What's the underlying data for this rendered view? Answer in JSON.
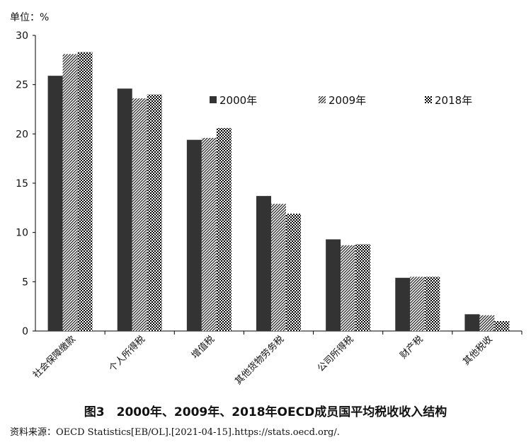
{
  "unit_label": "单位：%",
  "caption": "图3　2000年、2009年、2018年OECD成员国平均税收收入结构",
  "source": "资料来源：OECD Statistics[EB/OL].[2021-04-15].https://stats.oecd.org/.",
  "chart_data": {
    "type": "bar",
    "title": "",
    "xlabel": "",
    "ylabel": "",
    "ylim": [
      0,
      30
    ],
    "yticks": [
      0,
      5,
      10,
      15,
      20,
      25,
      30
    ],
    "legend_position": "top-right",
    "categories": [
      "社会保障缴款",
      "个人所得税",
      "增值税",
      "其他货物劳务税",
      "公司所得税",
      "财产税",
      "其他税收"
    ],
    "series": [
      {
        "name": "2000年",
        "style": "solid",
        "color": "#333333",
        "values": [
          25.9,
          24.6,
          19.4,
          13.7,
          9.3,
          5.4,
          1.7
        ]
      },
      {
        "name": "2009年",
        "style": "diagonal",
        "color": "#333333",
        "values": [
          28.1,
          23.6,
          19.6,
          12.9,
          8.7,
          5.5,
          1.6
        ]
      },
      {
        "name": "2018年",
        "style": "dots",
        "color": "#000000",
        "values": [
          28.3,
          24.0,
          20.6,
          11.9,
          8.8,
          5.5,
          1.0
        ]
      }
    ]
  }
}
